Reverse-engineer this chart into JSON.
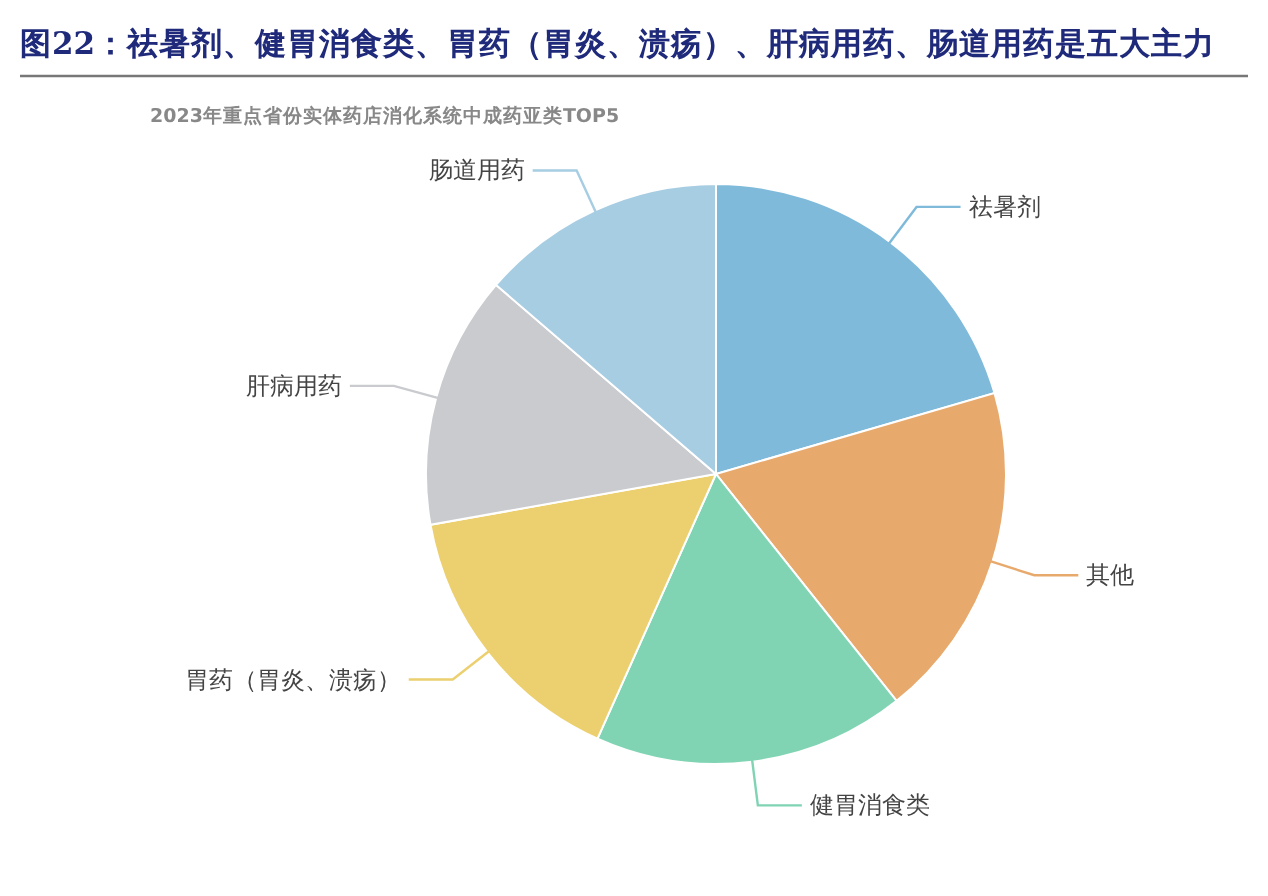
{
  "chart_data": {
    "type": "pie",
    "title": "图22：祛暑剂、健胃消食类、胃药（胃炎、溃疡）、肝病用药、肠道用药是五大主力",
    "subtitle": "2023年重点省份实体药店消化系统中成药亚类TOP5",
    "categories": [
      "祛暑剂",
      "其他",
      "健胃消食类",
      "胃药（胃炎、溃疡）",
      "肝病用药",
      "肠道用药"
    ],
    "values": [
      20.5,
      18.8,
      17.4,
      15.5,
      14.1,
      13.7
    ],
    "colors": [
      "#7fbadb",
      "#e8a96c",
      "#80d4b4",
      "#ecd06f",
      "#c9cbcf",
      "#a7cde3"
    ],
    "legend": false
  }
}
